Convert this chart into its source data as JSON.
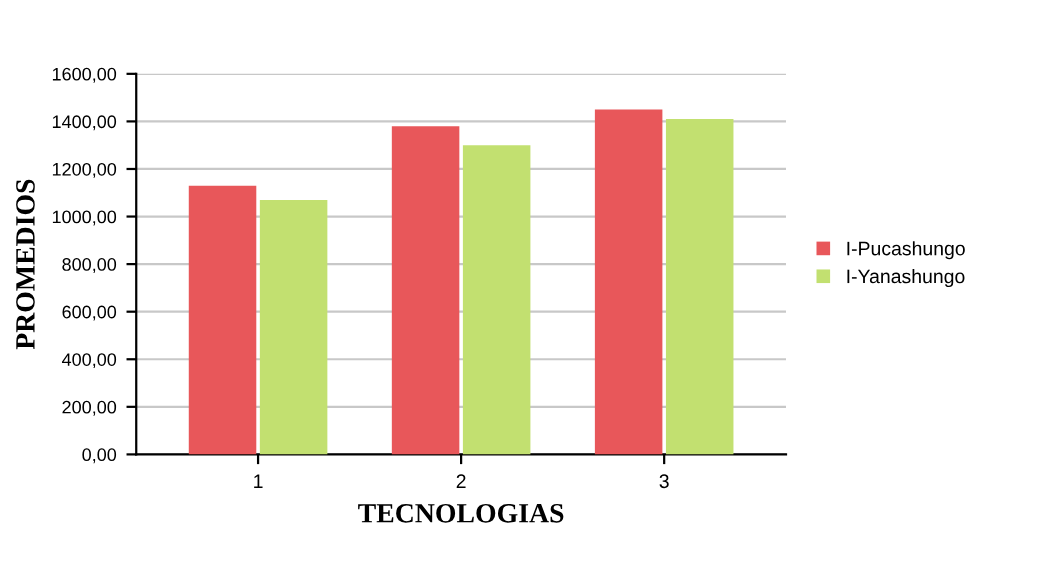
{
  "chart_data": {
    "type": "bar",
    "xlabel": "TECNOLOGIAS",
    "ylabel": "PROMEDIOS",
    "categories": [
      "1",
      "2",
      "3"
    ],
    "series": [
      {
        "name": "I-Pucashungo",
        "color": "#e8575a",
        "values": [
          1130,
          1380,
          1450
        ]
      },
      {
        "name": "I-Yanashungo",
        "color": "#c2e070",
        "values": [
          1070,
          1300,
          1410
        ]
      }
    ],
    "ylim": [
      0,
      1600
    ],
    "yticks": [
      {
        "value": 0,
        "label": "0,00"
      },
      {
        "value": 200,
        "label": "200,00"
      },
      {
        "value": 400,
        "label": "400,00"
      },
      {
        "value": 600,
        "label": "600,00"
      },
      {
        "value": 800,
        "label": "800,00"
      },
      {
        "value": 1000,
        "label": "1000,00"
      },
      {
        "value": 1200,
        "label": "1200,00"
      },
      {
        "value": 1400,
        "label": "1400,00"
      },
      {
        "value": 1600,
        "label": "1600,00"
      }
    ],
    "grid": "y",
    "legend": "right"
  }
}
